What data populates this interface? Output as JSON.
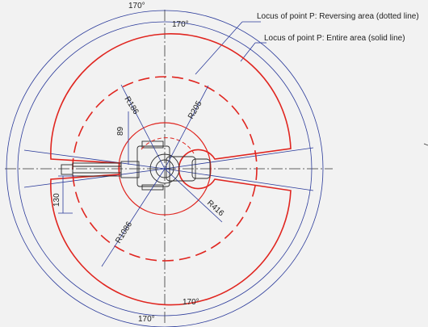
{
  "colors": {
    "background": "#f2f2f2",
    "dimension_line": "#2a3a9a",
    "work_area": "#e0251f",
    "robot_outline": "#2b2b2b",
    "center_line": "#333333"
  },
  "legend": {
    "dotted": "Locus of point P: Reversing area (dotted line)",
    "solid": "Locus of point P: Entire area (solid line)"
  },
  "angles": {
    "top_outer": "170°",
    "top_inner": "170°",
    "bottom_outer": "170°",
    "bottom_inner": "170°"
  },
  "radii": {
    "r186": "R186",
    "r205": "R205",
    "r416": "R416",
    "r1086": "R1086"
  },
  "dims": {
    "d89": "89",
    "d130": "130"
  }
}
